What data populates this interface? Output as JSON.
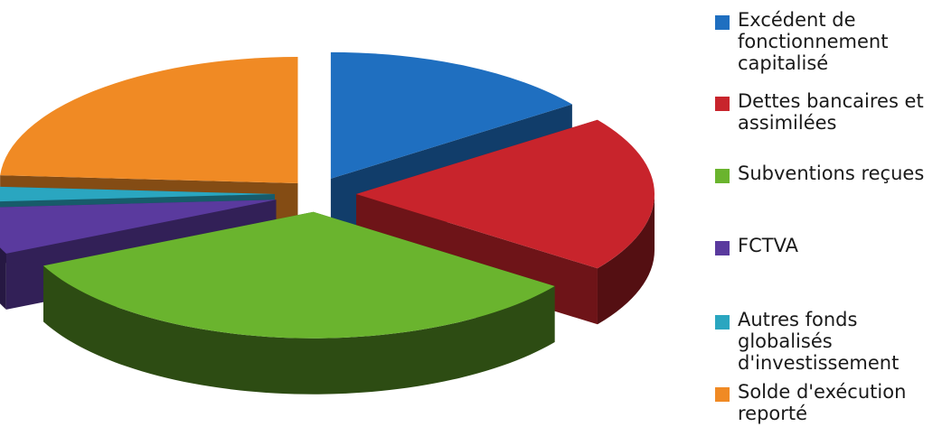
{
  "chart_data": {
    "type": "pie",
    "style": "3d-exploded",
    "categories": [
      "Excédent de\nfonctionnement\ncapitalisé",
      "Dettes bancaires et\nassimilées",
      "Subventions reçues",
      "FCTVA",
      "Autres fonds\nglobalisés\nd'investissement",
      "Solde d'exécution\nreporté"
    ],
    "values": [
      15,
      20,
      33,
      6,
      2,
      24
    ],
    "colors": [
      "#1f6fc0",
      "#c8242c",
      "#6ab42e",
      "#5a3a9e",
      "#2aa6c0",
      "#f08a24"
    ],
    "legend_position": "right"
  }
}
